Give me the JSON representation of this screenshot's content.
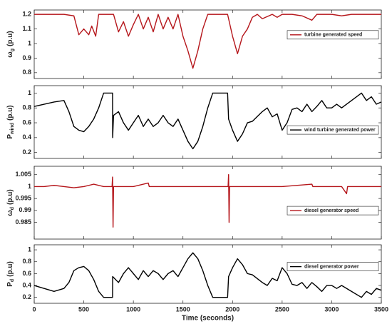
{
  "chart_data": [
    {
      "type": "line",
      "legend": "upper right",
      "ylabel": {
        "symbol": "ω",
        "subscript": "g",
        "unit": "(p.u)"
      },
      "xlim": [
        0,
        3500
      ],
      "xticks": [
        0,
        500,
        1000,
        1500,
        2000,
        2500,
        3000,
        3500
      ],
      "ylim": [
        0.76,
        1.23
      ],
      "yticks": [
        0.8,
        0.9,
        1,
        1.1,
        1.2
      ],
      "x": [
        0,
        100,
        200,
        300,
        400,
        450,
        500,
        550,
        580,
        620,
        650,
        700,
        800,
        850,
        900,
        950,
        1000,
        1050,
        1100,
        1150,
        1200,
        1250,
        1300,
        1350,
        1400,
        1450,
        1500,
        1550,
        1600,
        1650,
        1700,
        1750,
        1800,
        1900,
        1950,
        2000,
        2050,
        2100,
        2150,
        2200,
        2250,
        2300,
        2400,
        2450,
        2500,
        2600,
        2700,
        2800,
        2850,
        2900,
        3000,
        3100,
        3200,
        3300,
        3400,
        3500
      ],
      "series": [
        {
          "name": "turbine generated speed",
          "color": "#b5161b",
          "values": [
            1.2,
            1.2,
            1.2,
            1.2,
            1.19,
            1.06,
            1.1,
            1.06,
            1.12,
            1.05,
            1.2,
            1.2,
            1.2,
            1.08,
            1.15,
            1.05,
            1.13,
            1.2,
            1.1,
            1.18,
            1.08,
            1.2,
            1.1,
            1.18,
            1.1,
            1.2,
            1.05,
            0.95,
            0.83,
            0.95,
            1.1,
            1.2,
            1.2,
            1.2,
            1.2,
            1.05,
            0.93,
            1.05,
            1.1,
            1.18,
            1.2,
            1.17,
            1.2,
            1.18,
            1.2,
            1.2,
            1.19,
            1.16,
            1.2,
            1.2,
            1.2,
            1.19,
            1.2,
            1.2,
            1.2,
            1.2
          ]
        }
      ]
    },
    {
      "type": "line",
      "legend": "lower right",
      "ylabel": {
        "symbol": "P",
        "subscript": "wind",
        "unit": "(p.u)"
      },
      "xlim": [
        0,
        3500
      ],
      "xticks": [
        0,
        500,
        1000,
        1500,
        2000,
        2500,
        3000,
        3500
      ],
      "ylim": [
        0.12,
        1.1
      ],
      "yticks": [
        0.2,
        0.4,
        0.6,
        0.8,
        1
      ],
      "x": [
        0,
        100,
        200,
        300,
        350,
        400,
        450,
        500,
        550,
        600,
        650,
        700,
        750,
        790,
        791,
        800,
        850,
        900,
        950,
        1000,
        1050,
        1100,
        1150,
        1200,
        1250,
        1300,
        1350,
        1400,
        1450,
        1500,
        1550,
        1600,
        1650,
        1700,
        1750,
        1800,
        1850,
        1950,
        1960,
        2000,
        2050,
        2100,
        2150,
        2200,
        2300,
        2350,
        2400,
        2450,
        2500,
        2550,
        2600,
        2650,
        2700,
        2750,
        2800,
        2850,
        2900,
        2950,
        3000,
        3050,
        3100,
        3200,
        3300,
        3350,
        3400,
        3450,
        3500
      ],
      "series": [
        {
          "name": "wind turbine generated power",
          "color": "#000000",
          "values": [
            0.82,
            0.85,
            0.88,
            0.9,
            0.75,
            0.55,
            0.5,
            0.48,
            0.55,
            0.65,
            0.8,
            1,
            1,
            1,
            0.4,
            0.7,
            0.75,
            0.6,
            0.5,
            0.6,
            0.7,
            0.55,
            0.65,
            0.55,
            0.6,
            0.7,
            0.6,
            0.55,
            0.65,
            0.5,
            0.35,
            0.25,
            0.35,
            0.55,
            0.8,
            1,
            1,
            1,
            0.65,
            0.5,
            0.35,
            0.45,
            0.6,
            0.62,
            0.75,
            0.8,
            0.68,
            0.72,
            0.5,
            0.6,
            0.78,
            0.8,
            0.75,
            0.85,
            0.75,
            0.82,
            0.9,
            0.8,
            0.8,
            0.85,
            0.8,
            0.9,
            1,
            0.9,
            0.95,
            0.85,
            0.88
          ]
        }
      ]
    },
    {
      "type": "line",
      "legend": "lower right",
      "ylabel": {
        "symbol": "ω",
        "subscript": "d",
        "unit": "(p.u)"
      },
      "xlim": [
        0,
        3500
      ],
      "xticks": [
        0,
        500,
        1000,
        1500,
        2000,
        2500,
        3000,
        3500
      ],
      "ylim": [
        0.978,
        1.0085
      ],
      "yticks": [
        0.985,
        0.99,
        0.995,
        1,
        1.005
      ],
      "x": [
        0,
        100,
        200,
        300,
        400,
        500,
        600,
        700,
        785,
        790,
        795,
        800,
        1000,
        1150,
        1160,
        1500,
        1955,
        1960,
        1965,
        1970,
        2500,
        2800,
        2810,
        3100,
        3150,
        3160,
        3500
      ],
      "series": [
        {
          "name": "diesel generator speed",
          "color": "#b5161b",
          "values": [
            1,
            1,
            1.0005,
            1,
            0.9995,
            1,
            1.001,
            1,
            1,
            1.004,
            0.983,
            1,
            1,
            1.0015,
            1,
            1,
            1,
            1.005,
            0.985,
            1,
            1,
            1.001,
            1,
            1,
            0.997,
            1,
            1
          ]
        }
      ]
    },
    {
      "type": "line",
      "legend": "upper right",
      "ylabel": {
        "symbol": "P",
        "subscript": "d",
        "unit": "(p.u)"
      },
      "xlabel": "Time (seconds)",
      "xlim": [
        0,
        3500
      ],
      "xticks": [
        0,
        500,
        1000,
        1500,
        2000,
        2500,
        3000,
        3500
      ],
      "ylim": [
        0.1,
        1.085
      ],
      "yticks": [
        0.2,
        0.4,
        0.6,
        0.8,
        1
      ],
      "x": [
        0,
        100,
        200,
        300,
        350,
        400,
        450,
        500,
        550,
        600,
        650,
        700,
        790,
        791,
        850,
        900,
        950,
        1000,
        1050,
        1100,
        1150,
        1200,
        1250,
        1300,
        1350,
        1400,
        1450,
        1500,
        1550,
        1600,
        1650,
        1700,
        1750,
        1800,
        1950,
        1960,
        2000,
        2050,
        2100,
        2150,
        2200,
        2300,
        2350,
        2400,
        2450,
        2500,
        2550,
        2600,
        2650,
        2700,
        2750,
        2800,
        2850,
        2900,
        2950,
        3000,
        3050,
        3100,
        3200,
        3300,
        3350,
        3400,
        3450,
        3500
      ],
      "series": [
        {
          "name": "diesel generator power",
          "color": "#000000",
          "values": [
            0.4,
            0.35,
            0.3,
            0.35,
            0.45,
            0.65,
            0.7,
            0.72,
            0.65,
            0.5,
            0.3,
            0.2,
            0.2,
            0.55,
            0.45,
            0.6,
            0.7,
            0.6,
            0.5,
            0.65,
            0.55,
            0.65,
            0.6,
            0.5,
            0.6,
            0.65,
            0.55,
            0.7,
            0.85,
            0.95,
            0.85,
            0.65,
            0.4,
            0.2,
            0.2,
            0.55,
            0.7,
            0.85,
            0.75,
            0.6,
            0.58,
            0.45,
            0.4,
            0.52,
            0.48,
            0.7,
            0.6,
            0.42,
            0.4,
            0.45,
            0.35,
            0.45,
            0.38,
            0.3,
            0.4,
            0.4,
            0.35,
            0.4,
            0.3,
            0.2,
            0.3,
            0.25,
            0.35,
            0.32
          ]
        }
      ]
    }
  ]
}
